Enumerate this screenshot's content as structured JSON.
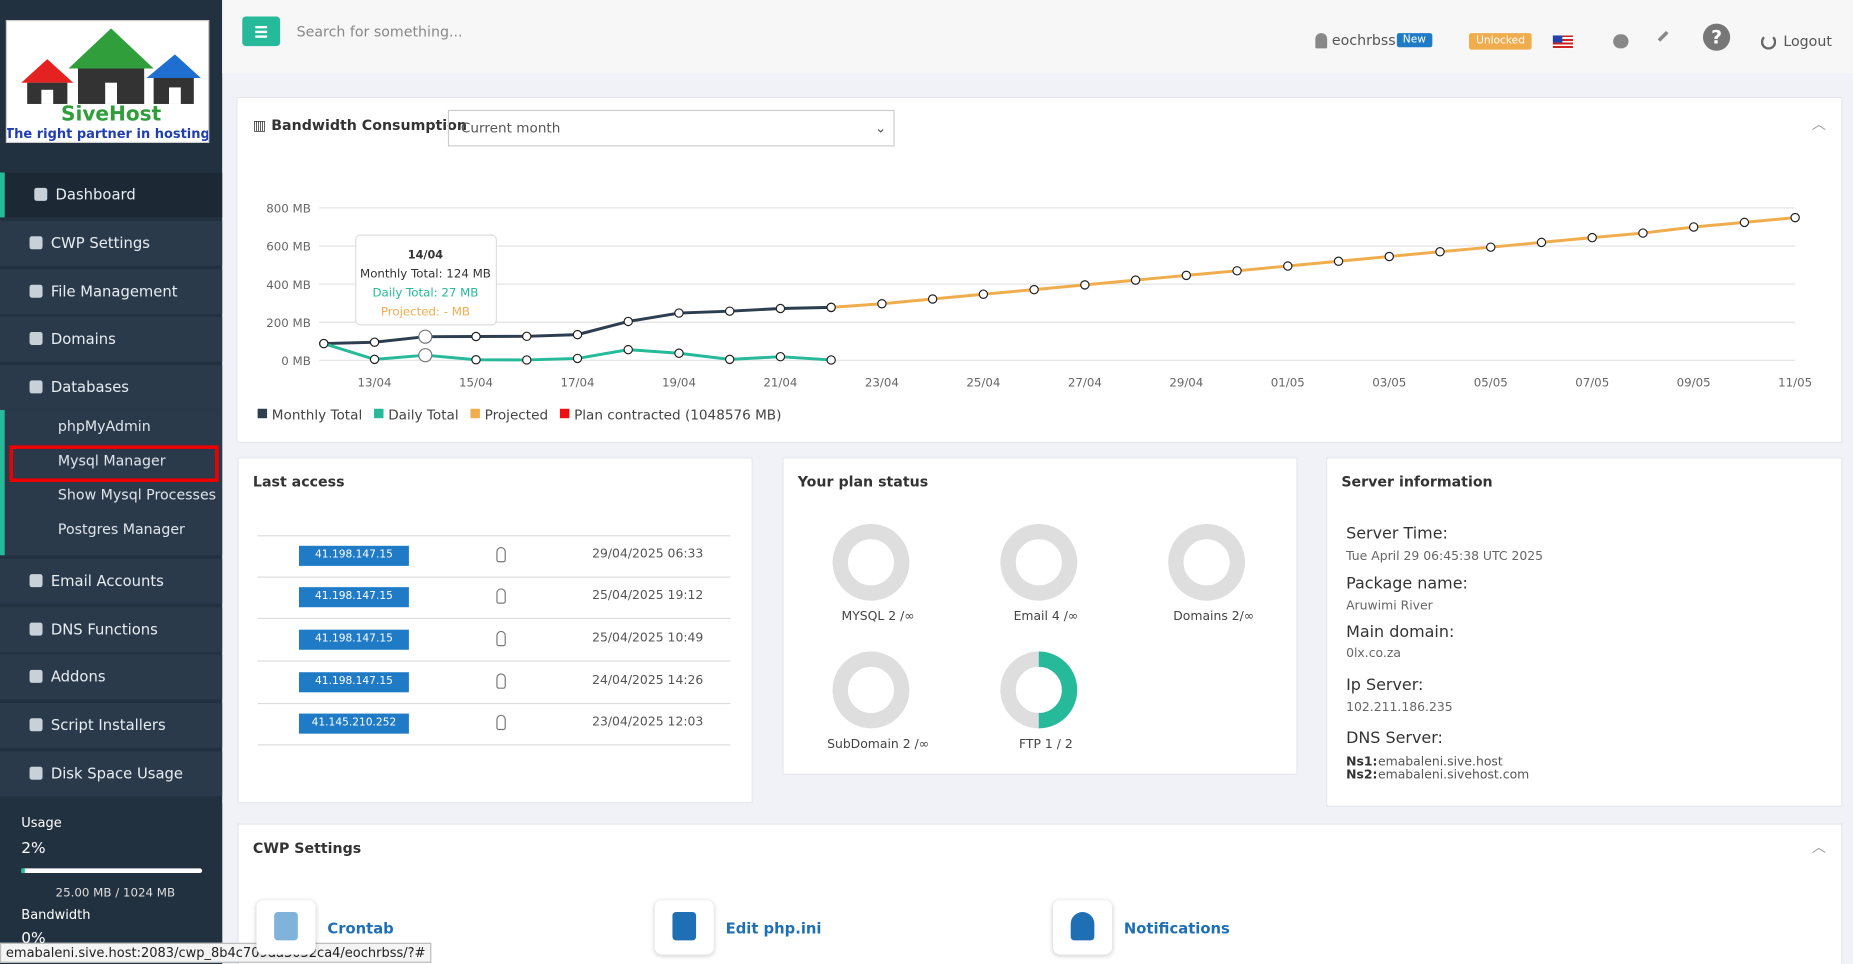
{
  "logo": {
    "name": "SiveHost",
    "tagline": "The right partner in hosting"
  },
  "header": {
    "search_placeholder": "Search for something...",
    "user": "eochrbss",
    "badge": "New",
    "status": "Unlocked",
    "logout": "Logout"
  },
  "sidebar": {
    "menu_top": [
      "Dashboard",
      "CWP Settings",
      "File Management",
      "Domains",
      "Databases"
    ],
    "submenu": [
      "phpMyAdmin",
      "Mysql Manager",
      "Show Mysql Processes",
      "Postgres Manager"
    ],
    "menu_bottom": [
      "Email Accounts",
      "DNS Functions",
      "Addons",
      "Script Installers",
      "Disk Space Usage"
    ]
  },
  "usage": {
    "label": "Usage",
    "percent": "2%",
    "detail": "25.00 MB / 1024 MB",
    "bandwidth_label": "Bandwidth",
    "bandwidth_percent": "0%"
  },
  "bandwidth": {
    "title": "Bandwidth Consumption",
    "period": "Current month"
  },
  "chart_data": {
    "type": "line",
    "categories": [
      null,
      "13/04",
      null,
      "15/04",
      null,
      "17/04",
      null,
      "19/04",
      null,
      "21/04",
      null,
      "23/04",
      null,
      "25/04",
      null,
      "27/04",
      null,
      "29/04",
      null,
      "01/05",
      null,
      "03/05",
      null,
      "05/05",
      null,
      "07/05",
      null,
      "09/05",
      null,
      "11/05"
    ],
    "series": [
      {
        "name": "Monthly Total",
        "color": "#2d3e50",
        "values": [
          88,
          95,
          124,
          125,
          126,
          135,
          204,
          248,
          258,
          272,
          278,
          null,
          null,
          null,
          null,
          null,
          null,
          null,
          null,
          null,
          null,
          null,
          null,
          null,
          null,
          null,
          null,
          null,
          null,
          null
        ]
      },
      {
        "name": "Daily Total",
        "color": "#26b99a",
        "values": [
          88,
          5,
          27,
          3,
          2,
          10,
          56,
          37,
          5,
          19,
          2,
          null,
          null,
          null,
          null,
          null,
          null,
          null,
          null,
          null,
          null,
          null,
          null,
          null,
          null,
          null,
          null,
          null,
          null,
          null
        ]
      },
      {
        "name": "Projected",
        "color": "#f0ad4e",
        "values": [
          null,
          null,
          null,
          null,
          null,
          null,
          null,
          null,
          null,
          null,
          278,
          297,
          322,
          347,
          371,
          396,
          421,
          446,
          470,
          495,
          520,
          545,
          570,
          594,
          619,
          644,
          668,
          700,
          724,
          749
        ]
      },
      {
        "name": "Plan contracted (1048576 MB)",
        "color": "#ee1111",
        "values": [
          null,
          null,
          null,
          null,
          null,
          null,
          null,
          null,
          null,
          null,
          null,
          null,
          null,
          null,
          null,
          null,
          null,
          null,
          null,
          null,
          null,
          null,
          null,
          null,
          null,
          null,
          null,
          null,
          null,
          null
        ]
      }
    ],
    "ylim": [
      0,
      800
    ],
    "yticks": [
      {
        "value": 0,
        "label": "0 MB"
      },
      {
        "value": 200,
        "label": "200 MB"
      },
      {
        "value": 400,
        "label": "400 MB"
      },
      {
        "value": 600,
        "label": "600 MB"
      },
      {
        "value": 800,
        "label": "800 MB"
      }
    ],
    "grid": true,
    "tooltip": {
      "title": "14/04",
      "lines": [
        "Monthly Total: 124 MB",
        "Daily Total: 27 MB",
        "Projected: - MB"
      ]
    }
  },
  "last_access": {
    "title": "Last access",
    "rows": [
      {
        "ip": "41.198.147.15",
        "date": "29/04/2025 06:33"
      },
      {
        "ip": "41.198.147.15",
        "date": "25/04/2025 19:12"
      },
      {
        "ip": "41.198.147.15",
        "date": "25/04/2025 10:49"
      },
      {
        "ip": "41.198.147.15",
        "date": "24/04/2025 14:26"
      },
      {
        "ip": "41.145.210.252",
        "date": "23/04/2025 12:03"
      }
    ]
  },
  "plan": {
    "title": "Your plan status",
    "items": [
      {
        "label": "MYSQL 2 /∞"
      },
      {
        "label": "Email 4 /∞"
      },
      {
        "label": "Domains 2/∞"
      },
      {
        "label": "SubDomain 2 /∞"
      },
      {
        "label": "FTP 1 / 2",
        "used": 1,
        "total": 2
      }
    ]
  },
  "server": {
    "title": "Server information",
    "fields": [
      {
        "label": "Server Time:",
        "value": "Tue April 29 06:45:38 UTC 2025"
      },
      {
        "label": "Package name:",
        "value": "Aruwimi River"
      },
      {
        "label": "Main domain:",
        "value": "0lx.co.za"
      },
      {
        "label": "Ip Server:",
        "value": "102.211.186.235"
      },
      {
        "label": "DNS Server:"
      }
    ],
    "ns": [
      {
        "label": "Ns1:",
        "value": "emabaleni.sive.host"
      },
      {
        "label": "Ns2:",
        "value": "emabaleni.sivehost.com"
      }
    ]
  },
  "cwp_settings": {
    "title": "CWP Settings",
    "items": [
      "Crontab",
      "Edit php.ini",
      "Notifications"
    ]
  },
  "status_bar": "emabaleni.sive.host:2083/cwp_8b4c709da3052ca4/eochrbss/?#"
}
